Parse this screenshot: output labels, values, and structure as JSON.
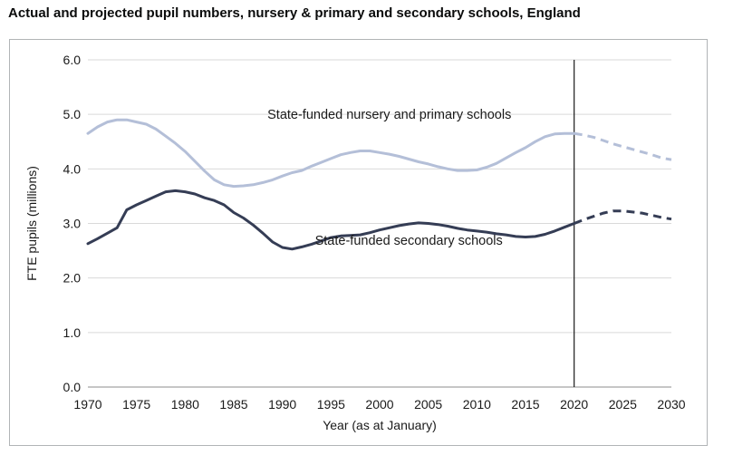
{
  "page": {
    "title": "Actual and projected pupil numbers, nursery & primary and secondary schools, England"
  },
  "chart_data": {
    "type": "line",
    "title": "Actual and projected pupil numbers, nursery & primary and secondary schools, England",
    "xlabel": "Year (as at January)",
    "ylabel": "FTE pupils (millions)",
    "xlim": [
      1970,
      2030
    ],
    "ylim": [
      0,
      6
    ],
    "x_ticks": [
      "1970",
      "1975",
      "1980",
      "1985",
      "1990",
      "1995",
      "2000",
      "2005",
      "2010",
      "2015",
      "2020",
      "2025",
      "2030"
    ],
    "y_ticks": [
      "0.0",
      "1.0",
      "2.0",
      "3.0",
      "4.0",
      "5.0",
      "6.0"
    ],
    "grid": "horizontal",
    "projection_marker_year": 2020,
    "series": [
      {
        "name": "State-funded nursery and primary schools",
        "color": "#b4bfd8",
        "actual": {
          "x": [
            1970,
            1971,
            1972,
            1973,
            1974,
            1975,
            1976,
            1977,
            1978,
            1979,
            1980,
            1981,
            1982,
            1983,
            1984,
            1985,
            1986,
            1987,
            1988,
            1989,
            1990,
            1991,
            1992,
            1993,
            1994,
            1995,
            1996,
            1997,
            1998,
            1999,
            2000,
            2001,
            2002,
            2003,
            2004,
            2005,
            2006,
            2007,
            2008,
            2009,
            2010,
            2011,
            2012,
            2013,
            2014,
            2015,
            2016,
            2017,
            2018,
            2019,
            2020
          ],
          "y": [
            4.65,
            4.77,
            4.86,
            4.9,
            4.9,
            4.86,
            4.82,
            4.73,
            4.6,
            4.47,
            4.32,
            4.14,
            3.96,
            3.8,
            3.71,
            3.68,
            3.69,
            3.71,
            3.75,
            3.8,
            3.87,
            3.93,
            3.97,
            4.05,
            4.12,
            4.19,
            4.26,
            4.3,
            4.33,
            4.33,
            4.3,
            4.27,
            4.23,
            4.18,
            4.13,
            4.09,
            4.04,
            4.0,
            3.97,
            3.97,
            3.98,
            4.03,
            4.1,
            4.2,
            4.3,
            4.39,
            4.5,
            4.59,
            4.64,
            4.65,
            4.65
          ]
        },
        "projected": {
          "x": [
            2020,
            2021,
            2022,
            2023,
            2024,
            2025,
            2026,
            2027,
            2028,
            2029,
            2030
          ],
          "y": [
            4.65,
            4.62,
            4.58,
            4.52,
            4.46,
            4.41,
            4.36,
            4.31,
            4.26,
            4.2,
            4.17
          ]
        }
      },
      {
        "name": "State-funded secondary schools",
        "color": "#353d55",
        "actual": {
          "x": [
            1970,
            1971,
            1972,
            1973,
            1974,
            1975,
            1976,
            1977,
            1978,
            1979,
            1980,
            1981,
            1982,
            1983,
            1984,
            1985,
            1986,
            1987,
            1988,
            1989,
            1990,
            1991,
            1992,
            1993,
            1994,
            1995,
            1996,
            1997,
            1998,
            1999,
            2000,
            2001,
            2002,
            2003,
            2004,
            2005,
            2006,
            2007,
            2008,
            2009,
            2010,
            2011,
            2012,
            2013,
            2014,
            2015,
            2016,
            2017,
            2018,
            2019,
            2020
          ],
          "y": [
            2.63,
            2.72,
            2.82,
            2.92,
            3.25,
            3.34,
            3.42,
            3.5,
            3.58,
            3.6,
            3.58,
            3.54,
            3.47,
            3.42,
            3.34,
            3.2,
            3.1,
            2.97,
            2.82,
            2.66,
            2.56,
            2.53,
            2.57,
            2.62,
            2.68,
            2.74,
            2.77,
            2.78,
            2.79,
            2.83,
            2.88,
            2.92,
            2.96,
            2.99,
            3.01,
            3.0,
            2.98,
            2.95,
            2.91,
            2.88,
            2.86,
            2.84,
            2.81,
            2.79,
            2.76,
            2.75,
            2.76,
            2.8,
            2.86,
            2.93,
            3.0
          ]
        },
        "projected": {
          "x": [
            2020,
            2021,
            2022,
            2023,
            2024,
            2025,
            2026,
            2027,
            2028,
            2029,
            2030
          ],
          "y": [
            3.0,
            3.07,
            3.13,
            3.19,
            3.23,
            3.23,
            3.21,
            3.19,
            3.15,
            3.11,
            3.08
          ]
        }
      }
    ],
    "annotations": [
      {
        "text": "State-funded nursery and primary schools",
        "x": 2001,
        "y": 5.0
      },
      {
        "text": "State-funded secondary schools",
        "x": 2003,
        "y": 2.69
      }
    ]
  }
}
